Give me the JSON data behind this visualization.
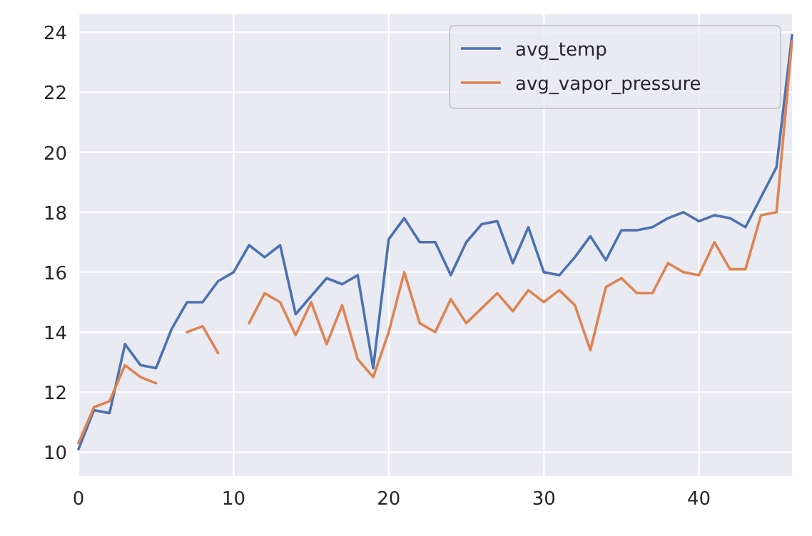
{
  "chart_data": {
    "type": "line",
    "x": [
      0,
      1,
      2,
      3,
      4,
      5,
      6,
      7,
      8,
      9,
      10,
      11,
      12,
      13,
      14,
      15,
      16,
      17,
      18,
      19,
      20,
      21,
      22,
      23,
      24,
      25,
      26,
      27,
      28,
      29,
      30,
      31,
      32,
      33,
      34,
      35,
      36,
      37,
      38,
      39,
      40,
      41,
      42,
      43,
      44,
      45,
      46
    ],
    "series": [
      {
        "name": "avg_temp",
        "color": "#4c72b0",
        "values": [
          10.1,
          11.4,
          11.3,
          13.6,
          12.9,
          12.8,
          14.1,
          15.0,
          15.0,
          15.7,
          16.0,
          16.9,
          16.5,
          16.9,
          14.6,
          15.2,
          15.8,
          15.6,
          15.9,
          12.8,
          17.1,
          17.8,
          17.0,
          17.0,
          15.9,
          17.0,
          17.6,
          17.7,
          16.3,
          17.5,
          16.0,
          15.9,
          16.5,
          17.2,
          16.4,
          17.4,
          17.4,
          17.5,
          17.8,
          18.0,
          17.7,
          17.9,
          17.8,
          17.5,
          18.5,
          19.5,
          23.9
        ]
      },
      {
        "name": "avg_vapor_pressure",
        "color": "#dd8452",
        "values": [
          10.3,
          11.5,
          11.7,
          12.9,
          12.5,
          12.3,
          null,
          14.0,
          14.2,
          13.3,
          null,
          14.3,
          15.3,
          15.0,
          13.9,
          15.0,
          13.6,
          14.9,
          13.1,
          12.5,
          14.0,
          16.0,
          14.3,
          14.0,
          15.1,
          14.3,
          14.8,
          15.3,
          14.7,
          15.4,
          15.0,
          15.4,
          14.9,
          13.4,
          15.5,
          15.8,
          15.3,
          15.3,
          16.3,
          16.0,
          15.9,
          17.0,
          16.1,
          16.1,
          17.9,
          18.0,
          23.7
        ]
      }
    ],
    "xlim": [
      0,
      46
    ],
    "xticks": [
      0,
      10,
      20,
      30,
      40
    ],
    "ylim": [
      9.2,
      24.6
    ],
    "yticks": [
      10,
      12,
      14,
      16,
      18,
      20,
      22,
      24
    ],
    "grid": true,
    "legend": "top right",
    "line_style": "solid",
    "marker": "none"
  }
}
